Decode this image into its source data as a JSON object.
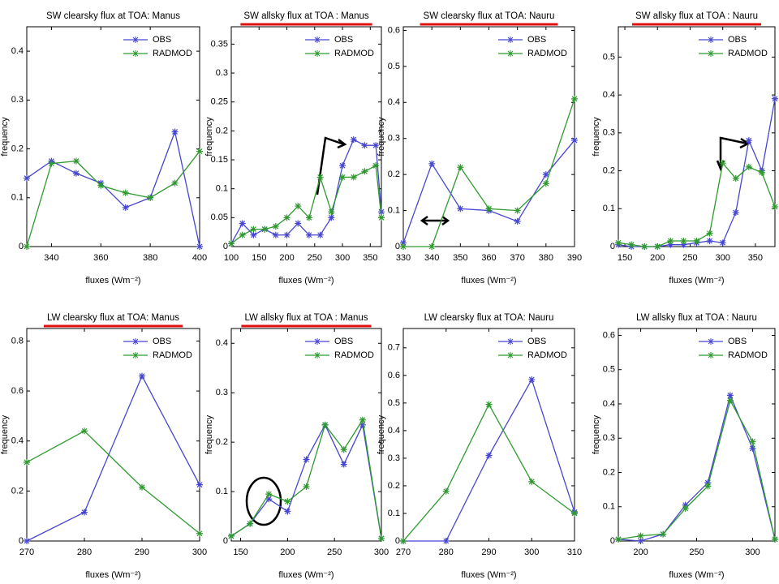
{
  "chart_data": [
    {
      "type": "line",
      "title": "SW clearsky flux at TOA: Manus",
      "xlabel": "fluxes (Wm⁻²)",
      "ylabel": "frequency",
      "title_underline": false,
      "x": [
        330,
        340,
        350,
        360,
        370,
        380,
        390,
        400
      ],
      "xlim": [
        330,
        400
      ],
      "xticks": [
        340,
        360,
        380,
        400
      ],
      "ylim": [
        0,
        0.45
      ],
      "yticks": [
        0,
        0.1,
        0.2,
        0.3,
        0.4
      ],
      "series": [
        {
          "name": "OBS",
          "color": "#4646d2",
          "values": [
            0.14,
            0.175,
            0.15,
            0.13,
            0.08,
            0.1,
            0.235,
            0
          ]
        },
        {
          "name": "RADMOD",
          "color": "#2e9a2e",
          "values": [
            0,
            0.17,
            0.175,
            0.125,
            0.11,
            0.1,
            0.13,
            0.195
          ]
        }
      ]
    },
    {
      "type": "line",
      "title": "SW allsky flux at TOA : Manus",
      "xlabel": "fluxes (Wm⁻²)",
      "ylabel": "frequency",
      "title_underline": true,
      "x": [
        100,
        120,
        140,
        160,
        180,
        200,
        220,
        240,
        260,
        280,
        300,
        320,
        340,
        360,
        370
      ],
      "xlim": [
        100,
        370
      ],
      "xticks": [
        100,
        150,
        200,
        250,
        300,
        350
      ],
      "ylim": [
        0,
        0.38
      ],
      "yticks": [
        0,
        0.05,
        0.1,
        0.15,
        0.2,
        0.25,
        0.3,
        0.35
      ],
      "series": [
        {
          "name": "OBS",
          "color": "#4646d2",
          "values": [
            0.005,
            0.04,
            0.02,
            0.03,
            0.02,
            0.02,
            0.04,
            0.02,
            0.02,
            0.05,
            0.14,
            0.185,
            0.175,
            0.175,
            0.06
          ]
        },
        {
          "name": "RADMOD",
          "color": "#2e9a2e",
          "values": [
            0.005,
            0.02,
            0.03,
            0.03,
            0.035,
            0.05,
            0.07,
            0.05,
            0.12,
            0.06,
            0.12,
            0.12,
            0.13,
            0.14,
            0.05
          ]
        }
      ]
    },
    {
      "type": "line",
      "title": "SW clearsky flux at TOA: Nauru",
      "xlabel": "fluxes (Wm⁻²)",
      "ylabel": "frequency",
      "title_underline": true,
      "x": [
        330,
        340,
        350,
        360,
        370,
        380,
        390
      ],
      "xlim": [
        330,
        390
      ],
      "xticks": [
        330,
        340,
        350,
        360,
        370,
        380,
        390
      ],
      "ylim": [
        0,
        0.61
      ],
      "yticks": [
        0,
        0.1,
        0.2,
        0.3,
        0.4,
        0.5,
        0.6
      ],
      "series": [
        {
          "name": "OBS",
          "color": "#4646d2",
          "values": [
            0.01,
            0.23,
            0.105,
            0.1,
            0.07,
            0.2,
            0.295
          ]
        },
        {
          "name": "RADMOD",
          "color": "#2e9a2e",
          "values": [
            0,
            0,
            0.22,
            0.105,
            0.1,
            0.175,
            0.41
          ]
        }
      ]
    },
    {
      "type": "line",
      "title": "SW allsky flux at TOA : Nauru",
      "xlabel": "fluxes (Wm⁻²)",
      "ylabel": "frequency",
      "title_underline": true,
      "x": [
        140,
        160,
        180,
        200,
        220,
        240,
        260,
        280,
        300,
        320,
        340,
        360,
        380
      ],
      "xlim": [
        140,
        380
      ],
      "xticks": [
        150,
        200,
        250,
        300,
        350
      ],
      "ylim": [
        0,
        0.58
      ],
      "yticks": [
        0,
        0.1,
        0.2,
        0.3,
        0.4,
        0.5
      ],
      "series": [
        {
          "name": "OBS",
          "color": "#4646d2",
          "values": [
            0.005,
            0,
            0,
            0,
            0.005,
            0.005,
            0.01,
            0.015,
            0.01,
            0.09,
            0.28,
            0.2,
            0.39
          ]
        },
        {
          "name": "RADMOD",
          "color": "#2e9a2e",
          "values": [
            0.01,
            0.005,
            0,
            0,
            0.015,
            0.015,
            0.015,
            0.035,
            0.22,
            0.18,
            0.21,
            0.195,
            0.105
          ]
        }
      ]
    },
    {
      "type": "line",
      "title": "LW clearsky flux at TOA: Manus",
      "xlabel": "fluxes (Wm⁻²)",
      "ylabel": "frequency",
      "title_underline": true,
      "x": [
        270,
        280,
        290,
        300
      ],
      "xlim": [
        270,
        300
      ],
      "xticks": [
        270,
        280,
        290,
        300
      ],
      "ylim": [
        0,
        0.85
      ],
      "yticks": [
        0,
        0.2,
        0.4,
        0.6,
        0.8
      ],
      "series": [
        {
          "name": "OBS",
          "color": "#4646d2",
          "values": [
            0,
            0.115,
            0.66,
            0.225
          ]
        },
        {
          "name": "RADMOD",
          "color": "#2e9a2e",
          "values": [
            0.315,
            0.44,
            0.215,
            0.03
          ]
        }
      ]
    },
    {
      "type": "line",
      "title": "LW allsky flux at TOA : Manus",
      "xlabel": "fluxes (Wm⁻²)",
      "ylabel": "frequency",
      "title_underline": true,
      "x": [
        140,
        160,
        180,
        200,
        220,
        240,
        260,
        280,
        300
      ],
      "xlim": [
        140,
        300
      ],
      "xticks": [
        150,
        200,
        250,
        300
      ],
      "ylim": [
        0,
        0.43
      ],
      "yticks": [
        0,
        0.1,
        0.2,
        0.3,
        0.4
      ],
      "series": [
        {
          "name": "OBS",
          "color": "#4646d2",
          "values": [
            0.01,
            0.035,
            0.085,
            0.06,
            0.165,
            0.235,
            0.155,
            0.235,
            0.005
          ]
        },
        {
          "name": "RADMOD",
          "color": "#2e9a2e",
          "values": [
            0.01,
            0.035,
            0.095,
            0.08,
            0.11,
            0.235,
            0.185,
            0.245,
            0.005
          ]
        }
      ]
    },
    {
      "type": "line",
      "title": "LW clearsky flux at TOA: Nauru",
      "xlabel": "fluxes (Wm⁻²)",
      "ylabel": "frequency",
      "title_underline": false,
      "x": [
        270,
        280,
        290,
        300,
        310
      ],
      "xlim": [
        270,
        310
      ],
      "xticks": [
        270,
        280,
        290,
        300,
        310
      ],
      "ylim": [
        0,
        0.77
      ],
      "yticks": [
        0,
        0.1,
        0.2,
        0.3,
        0.4,
        0.5,
        0.6,
        0.7
      ],
      "series": [
        {
          "name": "OBS",
          "color": "#4646d2",
          "values": [
            0,
            0,
            0.31,
            0.585,
            0.105
          ]
        },
        {
          "name": "RADMOD",
          "color": "#2e9a2e",
          "values": [
            0,
            0.18,
            0.495,
            0.215,
            0.1
          ]
        }
      ]
    },
    {
      "type": "line",
      "title": "LW allsky flux at TOA : Nauru",
      "xlabel": "fluxes (Wm⁻²)",
      "ylabel": "frequency",
      "title_underline": false,
      "x": [
        180,
        200,
        220,
        240,
        260,
        280,
        300,
        320
      ],
      "xlim": [
        180,
        320
      ],
      "xticks": [
        200,
        250,
        300
      ],
      "ylim": [
        0,
        0.62
      ],
      "yticks": [
        0,
        0.1,
        0.2,
        0.3,
        0.4,
        0.5,
        0.6
      ],
      "series": [
        {
          "name": "OBS",
          "color": "#4646d2",
          "values": [
            0.005,
            0,
            0.02,
            0.105,
            0.17,
            0.425,
            0.27,
            0.005
          ]
        },
        {
          "name": "RADMOD",
          "color": "#2e9a2e",
          "values": [
            0.005,
            0.015,
            0.02,
            0.095,
            0.16,
            0.41,
            0.29,
            0.005
          ]
        }
      ]
    }
  ]
}
